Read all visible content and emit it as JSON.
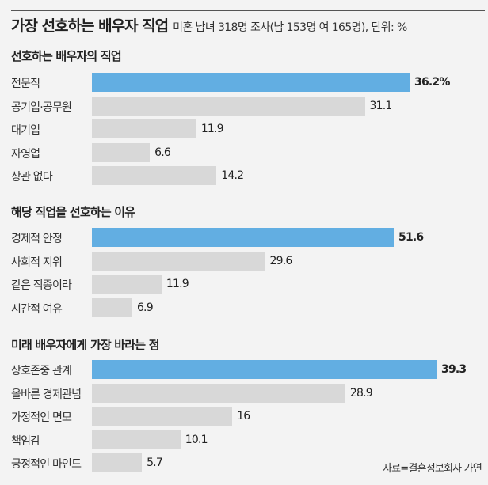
{
  "title": "가장 선호하는 배우자 직업",
  "subtitle": "미혼 남녀 318명 조사(남 153명 여 165명), 단위: %",
  "source": "자료=결혼정보회사 가연",
  "colors": {
    "highlight": "#62aee2",
    "bar": "#d8d8d8",
    "background": "#f3f3f3"
  },
  "chart_data": [
    {
      "type": "bar",
      "orientation": "horizontal",
      "title": "선호하는 배우자의 직업",
      "categories": [
        "전문직",
        "공기업·공무원",
        "대기업",
        "자영업",
        "상관 없다"
      ],
      "values": [
        36.2,
        31.1,
        11.9,
        6.6,
        14.2
      ],
      "labels": [
        "36.2%",
        "31.1",
        "11.9",
        "6.6",
        "14.2"
      ],
      "highlight_index": 0
    },
    {
      "type": "bar",
      "orientation": "horizontal",
      "title": "해당 직업을 선호하는 이유",
      "categories": [
        "경제적 안정",
        "사회적 지위",
        "같은 직종이라",
        "시간적 여유"
      ],
      "values": [
        51.6,
        29.6,
        11.9,
        6.9
      ],
      "labels": [
        "51.6",
        "29.6",
        "11.9",
        "6.9"
      ],
      "highlight_index": 0
    },
    {
      "type": "bar",
      "orientation": "horizontal",
      "title": "미래 배우자에게 가장 바라는 점",
      "categories": [
        "상호존중 관계",
        "올바른 경제관념",
        "가정적인 면모",
        "책임감",
        "긍정적인 마인드"
      ],
      "values": [
        39.3,
        28.9,
        16,
        10.1,
        5.7
      ],
      "labels": [
        "39.3",
        "28.9",
        "16",
        "10.1",
        "5.7"
      ],
      "highlight_index": 0
    }
  ]
}
